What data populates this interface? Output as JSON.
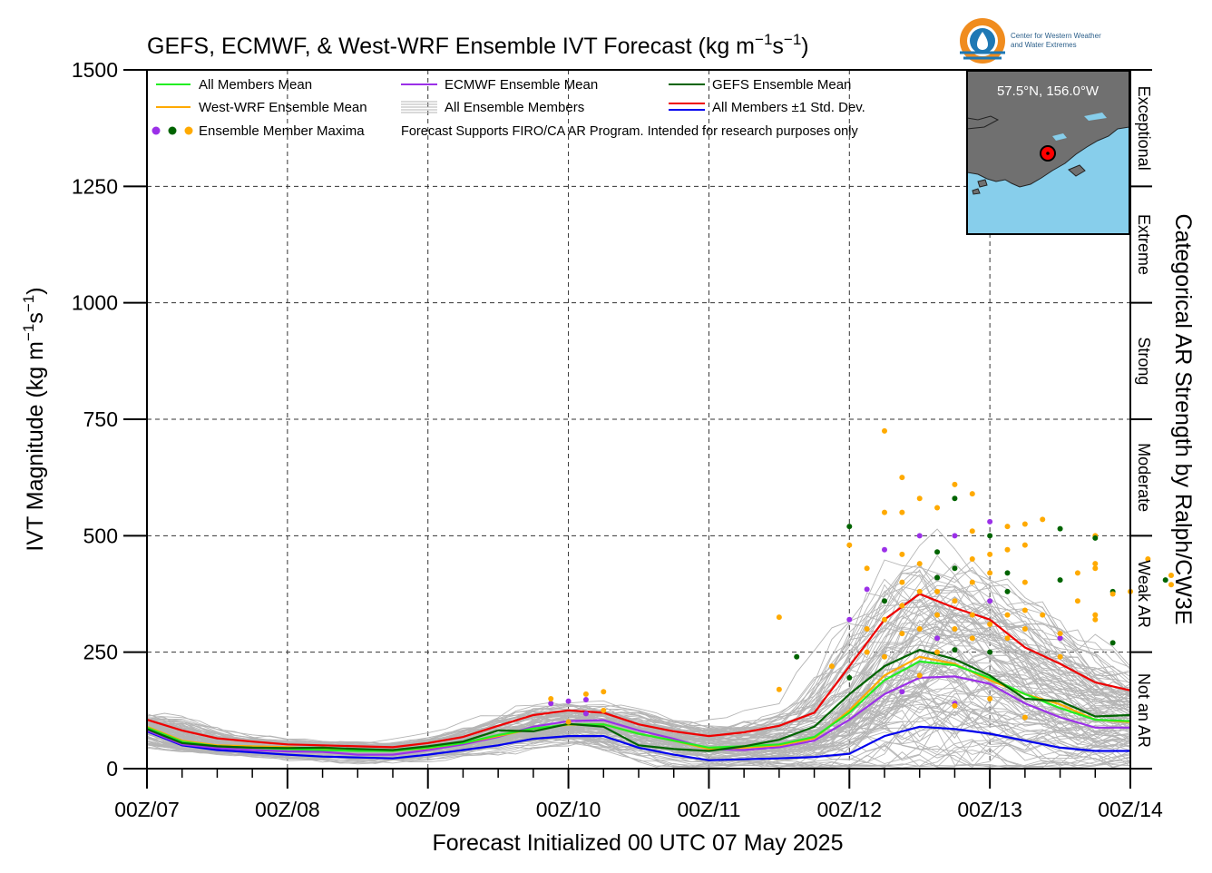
{
  "chart_data": {
    "type": "line",
    "title_main": "GEFS, ECMWF, & West-WRF Ensemble IVT Forecast (kg m",
    "title_exp1": "−1",
    "title_mid": "s",
    "title_exp2": "−1",
    "title_end": ")",
    "ylabel_main": "IVT Magnitude (kg m",
    "ylabel_exp1": "−1",
    "ylabel_mid": "s",
    "ylabel_exp2": "−1",
    "ylabel_end": ")",
    "xlabel": "Forecast Initialized 00 UTC 07 May 2025",
    "right_label": "Categorical AR Strength by Ralph/CW3E",
    "ylim": [
      0,
      1500
    ],
    "xlim": [
      0,
      168
    ],
    "grid": true,
    "y_ticks": [
      "0",
      "250",
      "500",
      "750",
      "1000",
      "1250",
      "1500"
    ],
    "y_tick_values": [
      0,
      250,
      500,
      750,
      1000,
      1250,
      1500
    ],
    "x_ticks": [
      "00Z/07",
      "00Z/08",
      "00Z/09",
      "00Z/10",
      "00Z/11",
      "00Z/12",
      "00Z/13",
      "00Z/14"
    ],
    "x_tick_values": [
      0,
      24,
      48,
      72,
      96,
      120,
      144,
      168
    ],
    "categories_right": [
      {
        "label": "Not an AR",
        "from": 0,
        "to": 250
      },
      {
        "label": "Weak AR",
        "from": 250,
        "to": 500
      },
      {
        "label": "Moderate",
        "from": 500,
        "to": 750
      },
      {
        "label": "Strong",
        "from": 750,
        "to": 1000
      },
      {
        "label": "Extreme",
        "from": 1000,
        "to": 1250
      },
      {
        "label": "Exceptional",
        "from": 1250,
        "to": 1500
      }
    ],
    "legend": {
      "all_mean": "All Members Mean",
      "ecmwf_mean": "ECMWF Ensemble Mean",
      "gefs_mean": "GEFS Ensemble Mean",
      "wrf_mean": "West-WRF Ensemble Mean",
      "all_members": "All Ensemble Members",
      "std_dev": "All Members ±1 Std. Dev.",
      "maxima": "Ensemble Member Maxima",
      "note": "Forecast Supports FIRO/CA AR Program. Intended for research purposes only"
    },
    "inset_location": "57.5°N, 156.0°W",
    "logo_text_1": "Center for Western Weather",
    "logo_text_2": "and Water Extremes",
    "x": [
      0,
      6,
      12,
      18,
      24,
      30,
      36,
      42,
      48,
      54,
      60,
      66,
      72,
      78,
      84,
      90,
      96,
      102,
      108,
      114,
      120,
      126,
      132,
      138,
      144,
      150,
      156,
      162,
      168
    ],
    "series": [
      {
        "name": "All Members Mean",
        "color": "#22ee22",
        "values": [
          88,
          58,
          48,
          45,
          42,
          40,
          38,
          38,
          45,
          55,
          72,
          86,
          95,
          95,
          75,
          60,
          45,
          48,
          52,
          68,
          120,
          190,
          230,
          222,
          195,
          160,
          130,
          105,
          102
        ]
      },
      {
        "name": "ECMWF Ensemble Mean",
        "color": "#9b30e8",
        "values": [
          82,
          52,
          44,
          40,
          37,
          36,
          30,
          30,
          40,
          52,
          68,
          90,
          102,
          104,
          82,
          64,
          42,
          40,
          46,
          60,
          105,
          160,
          195,
          198,
          182,
          140,
          110,
          88,
          88
        ]
      },
      {
        "name": "GEFS Ensemble Mean",
        "color": "#006400",
        "values": [
          85,
          55,
          48,
          45,
          44,
          45,
          42,
          40,
          48,
          58,
          82,
          80,
          96,
          90,
          50,
          42,
          38,
          48,
          62,
          90,
          160,
          220,
          255,
          235,
          200,
          150,
          145,
          112,
          115
        ]
      },
      {
        "name": "West-WRF Ensemble Mean",
        "color": "#ffaa00",
        "values": [
          90,
          60,
          50,
          48,
          46,
          42,
          40,
          38,
          44,
          55,
          70,
          86,
          94,
          95,
          75,
          60,
          42,
          45,
          50,
          65,
          125,
          200,
          240,
          225,
          190,
          160,
          138,
          105,
          100
        ]
      },
      {
        "name": "All Members +1 Std. Dev.",
        "color": "#ee0000",
        "values": [
          105,
          82,
          65,
          58,
          52,
          50,
          48,
          46,
          55,
          68,
          92,
          115,
          125,
          120,
          95,
          80,
          70,
          78,
          92,
          120,
          220,
          320,
          375,
          345,
          320,
          260,
          225,
          185,
          168
        ]
      },
      {
        "name": "All Members -1 Std. Dev.",
        "color": "#0000ee",
        "values": [
          80,
          50,
          40,
          35,
          30,
          26,
          24,
          22,
          30,
          40,
          50,
          64,
          70,
          70,
          45,
          30,
          18,
          20,
          22,
          25,
          32,
          70,
          90,
          85,
          75,
          60,
          45,
          38,
          38
        ]
      }
    ],
    "maxima": [
      {
        "x": 69,
        "y": 140,
        "c": "#9b30e8"
      },
      {
        "x": 69,
        "y": 150,
        "c": "#ffaa00"
      },
      {
        "x": 72,
        "y": 145,
        "c": "#9b30e8"
      },
      {
        "x": 75,
        "y": 148,
        "c": "#9b30e8"
      },
      {
        "x": 75,
        "y": 160,
        "c": "#ffaa00"
      },
      {
        "x": 78,
        "y": 165,
        "c": "#ffaa00"
      },
      {
        "x": 78,
        "y": 125,
        "c": "#ffaa00"
      },
      {
        "x": 72,
        "y": 100,
        "c": "#ffaa00"
      },
      {
        "x": 75,
        "y": 118,
        "c": "#9b30e8"
      },
      {
        "x": 108,
        "y": 325,
        "c": "#ffaa00"
      },
      {
        "x": 108,
        "y": 170,
        "c": "#ffaa00"
      },
      {
        "x": 111,
        "y": 240,
        "c": "#006400"
      },
      {
        "x": 117,
        "y": 220,
        "c": "#ffaa00"
      },
      {
        "x": 120,
        "y": 520,
        "c": "#006400"
      },
      {
        "x": 120,
        "y": 480,
        "c": "#ffaa00"
      },
      {
        "x": 120,
        "y": 320,
        "c": "#9b30e8"
      },
      {
        "x": 120,
        "y": 195,
        "c": "#006400"
      },
      {
        "x": 123,
        "y": 430,
        "c": "#ffaa00"
      },
      {
        "x": 123,
        "y": 385,
        "c": "#9b30e8"
      },
      {
        "x": 123,
        "y": 300,
        "c": "#ffaa00"
      },
      {
        "x": 123,
        "y": 250,
        "c": "#ffaa00"
      },
      {
        "x": 126,
        "y": 725,
        "c": "#ffaa00"
      },
      {
        "x": 126,
        "y": 550,
        "c": "#ffaa00"
      },
      {
        "x": 126,
        "y": 470,
        "c": "#9b30e8"
      },
      {
        "x": 126,
        "y": 360,
        "c": "#006400"
      },
      {
        "x": 126,
        "y": 320,
        "c": "#ffaa00"
      },
      {
        "x": 126,
        "y": 240,
        "c": "#ffaa00"
      },
      {
        "x": 129,
        "y": 625,
        "c": "#ffaa00"
      },
      {
        "x": 129,
        "y": 550,
        "c": "#ffaa00"
      },
      {
        "x": 129,
        "y": 460,
        "c": "#ffaa00"
      },
      {
        "x": 129,
        "y": 400,
        "c": "#ffaa00"
      },
      {
        "x": 129,
        "y": 350,
        "c": "#ffaa00"
      },
      {
        "x": 129,
        "y": 290,
        "c": "#ffaa00"
      },
      {
        "x": 129,
        "y": 165,
        "c": "#9b30e8"
      },
      {
        "x": 132,
        "y": 580,
        "c": "#ffaa00"
      },
      {
        "x": 132,
        "y": 500,
        "c": "#9b30e8"
      },
      {
        "x": 132,
        "y": 440,
        "c": "#ffaa00"
      },
      {
        "x": 132,
        "y": 380,
        "c": "#ffaa00"
      },
      {
        "x": 132,
        "y": 300,
        "c": "#ffaa00"
      },
      {
        "x": 132,
        "y": 200,
        "c": "#ffaa00"
      },
      {
        "x": 135,
        "y": 560,
        "c": "#ffaa00"
      },
      {
        "x": 135,
        "y": 465,
        "c": "#006400"
      },
      {
        "x": 135,
        "y": 410,
        "c": "#006400"
      },
      {
        "x": 135,
        "y": 380,
        "c": "#ffaa00"
      },
      {
        "x": 135,
        "y": 330,
        "c": "#ffaa00"
      },
      {
        "x": 135,
        "y": 280,
        "c": "#9b30e8"
      },
      {
        "x": 135,
        "y": 250,
        "c": "#ffaa00"
      },
      {
        "x": 138,
        "y": 610,
        "c": "#ffaa00"
      },
      {
        "x": 138,
        "y": 580,
        "c": "#006400"
      },
      {
        "x": 138,
        "y": 500,
        "c": "#9b30e8"
      },
      {
        "x": 138,
        "y": 430,
        "c": "#006400"
      },
      {
        "x": 138,
        "y": 360,
        "c": "#ffaa00"
      },
      {
        "x": 138,
        "y": 300,
        "c": "#ffaa00"
      },
      {
        "x": 138,
        "y": 255,
        "c": "#006400"
      },
      {
        "x": 138,
        "y": 140,
        "c": "#9b30e8"
      },
      {
        "x": 138,
        "y": 135,
        "c": "#ffaa00"
      },
      {
        "x": 141,
        "y": 590,
        "c": "#ffaa00"
      },
      {
        "x": 141,
        "y": 510,
        "c": "#ffaa00"
      },
      {
        "x": 141,
        "y": 450,
        "c": "#ffaa00"
      },
      {
        "x": 141,
        "y": 400,
        "c": "#ffaa00"
      },
      {
        "x": 141,
        "y": 330,
        "c": "#ffaa00"
      },
      {
        "x": 141,
        "y": 280,
        "c": "#ffaa00"
      },
      {
        "x": 144,
        "y": 530,
        "c": "#9b30e8"
      },
      {
        "x": 144,
        "y": 500,
        "c": "#006400"
      },
      {
        "x": 144,
        "y": 460,
        "c": "#ffaa00"
      },
      {
        "x": 144,
        "y": 420,
        "c": "#ffaa00"
      },
      {
        "x": 144,
        "y": 360,
        "c": "#9b30e8"
      },
      {
        "x": 144,
        "y": 310,
        "c": "#ffaa00"
      },
      {
        "x": 144,
        "y": 250,
        "c": "#006400"
      },
      {
        "x": 144,
        "y": 150,
        "c": "#ffaa00"
      },
      {
        "x": 147,
        "y": 520,
        "c": "#ffaa00"
      },
      {
        "x": 147,
        "y": 470,
        "c": "#ffaa00"
      },
      {
        "x": 147,
        "y": 420,
        "c": "#006400"
      },
      {
        "x": 147,
        "y": 380,
        "c": "#006400"
      },
      {
        "x": 147,
        "y": 330,
        "c": "#ffaa00"
      },
      {
        "x": 147,
        "y": 280,
        "c": "#ffaa00"
      },
      {
        "x": 150,
        "y": 525,
        "c": "#ffaa00"
      },
      {
        "x": 150,
        "y": 480,
        "c": "#ffaa00"
      },
      {
        "x": 150,
        "y": 400,
        "c": "#ffaa00"
      },
      {
        "x": 150,
        "y": 340,
        "c": "#ffaa00"
      },
      {
        "x": 150,
        "y": 300,
        "c": "#ffaa00"
      },
      {
        "x": 150,
        "y": 110,
        "c": "#ffaa00"
      },
      {
        "x": 153,
        "y": 535,
        "c": "#ffaa00"
      },
      {
        "x": 153,
        "y": 330,
        "c": "#ffaa00"
      },
      {
        "x": 156,
        "y": 515,
        "c": "#006400"
      },
      {
        "x": 156,
        "y": 405,
        "c": "#006400"
      },
      {
        "x": 156,
        "y": 280,
        "c": "#9b30e8"
      },
      {
        "x": 156,
        "y": 240,
        "c": "#ffaa00"
      },
      {
        "x": 156,
        "y": 290,
        "c": "#ffaa00"
      },
      {
        "x": 159,
        "y": 420,
        "c": "#ffaa00"
      },
      {
        "x": 159,
        "y": 360,
        "c": "#ffaa00"
      },
      {
        "x": 162,
        "y": 500,
        "c": "#ffaa00"
      },
      {
        "x": 162,
        "y": 495,
        "c": "#006400"
      },
      {
        "x": 162,
        "y": 440,
        "c": "#ffaa00"
      },
      {
        "x": 162,
        "y": 430,
        "c": "#ffaa00"
      },
      {
        "x": 162,
        "y": 330,
        "c": "#ffaa00"
      },
      {
        "x": 162,
        "y": 320,
        "c": "#ffaa00"
      },
      {
        "x": 165,
        "y": 380,
        "c": "#006400"
      },
      {
        "x": 165,
        "y": 375,
        "c": "#ffaa00"
      },
      {
        "x": 165,
        "y": 270,
        "c": "#006400"
      },
      {
        "x": 168,
        "y": 380,
        "c": "#ffaa00"
      },
      {
        "x": 171,
        "y": 450,
        "c": "#ffaa00"
      },
      {
        "x": 174,
        "y": 405,
        "c": "#006400"
      },
      {
        "x": 177,
        "y": 415,
        "c": "#ffaa00"
      },
      {
        "x": 180,
        "y": 395,
        "c": "#ffaa00"
      }
    ]
  },
  "colors": {
    "members": "#b5b5b5",
    "ocean": "#87ceeb",
    "land": "#707070",
    "marker": "#ff0000"
  }
}
